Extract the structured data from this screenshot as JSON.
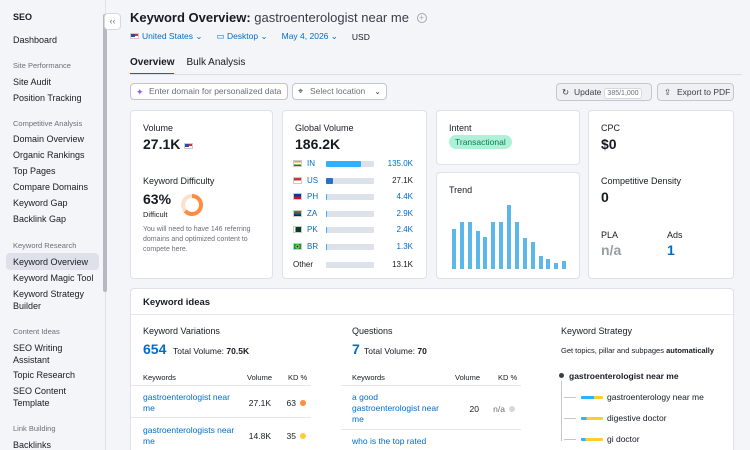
{
  "sidebar": {
    "title": "SEO",
    "collapse_glyph": "‹‹",
    "items": [
      {
        "label": "Dashboard"
      },
      {
        "label": "Site Performance",
        "type": "section"
      },
      {
        "label": "Site Audit"
      },
      {
        "label": "Position Tracking"
      },
      {
        "label": "Competitive Analysis",
        "type": "section"
      },
      {
        "label": "Domain Overview"
      },
      {
        "label": "Organic Rankings"
      },
      {
        "label": "Top Pages"
      },
      {
        "label": "Compare Domains"
      },
      {
        "label": "Keyword Gap"
      },
      {
        "label": "Backlink Gap"
      },
      {
        "label": "Keyword Research",
        "type": "section"
      },
      {
        "label": "Keyword Overview",
        "active": true
      },
      {
        "label": "Keyword Magic Tool"
      },
      {
        "label": "Keyword Strategy"
      },
      {
        "label": "Builder"
      },
      {
        "label": "Content Ideas",
        "type": "section"
      },
      {
        "label": "SEO Writing"
      },
      {
        "label": "Assistant"
      },
      {
        "label": "Topic Research"
      },
      {
        "label": "SEO Content"
      },
      {
        "label": "Template"
      },
      {
        "label": "Link Building",
        "type": "section"
      },
      {
        "label": "Backlinks"
      }
    ]
  },
  "header": {
    "title": "Keyword Overview:",
    "keyword": "gastroenterologist near me",
    "add_icon": "plus-circle-icon",
    "filters": {
      "country": "United States",
      "device": "Desktop",
      "date": "May 4, 2026",
      "currency": "USD"
    },
    "tabs": [
      {
        "label": "Overview",
        "active": true
      },
      {
        "label": "Bulk Analysis"
      }
    ]
  },
  "toolbar": {
    "domain_placeholder": "Enter domain for personalized data",
    "location_placeholder": "Select location",
    "update_label": "Update",
    "update_count": "385/1,000",
    "export_label": "Export to PDF"
  },
  "volume_card": {
    "volume_label": "Volume",
    "volume_value": "27.1K",
    "kd_label": "Keyword Difficulty",
    "kd_value": "63%",
    "kd_level": "Difficult",
    "kd_percent": 63,
    "kd_note": "You will need to have 146 referring domains and optimized content to compete here."
  },
  "global_volume": {
    "label": "Global Volume",
    "value": "186.2K",
    "rows": [
      {
        "code": "IN",
        "value": "135.0K",
        "share": 0.73,
        "link": true
      },
      {
        "code": "US",
        "value": "27.1K",
        "share": 0.15,
        "link": false
      },
      {
        "code": "PH",
        "value": "4.4K",
        "share": 0.03,
        "link": true
      },
      {
        "code": "ZA",
        "value": "2.9K",
        "share": 0.02,
        "link": true
      },
      {
        "code": "PK",
        "value": "2.4K",
        "share": 0.015,
        "link": true
      },
      {
        "code": "BR",
        "value": "1.3K",
        "share": 0.01,
        "link": true
      },
      {
        "code": "Other",
        "value": "13.1K",
        "share": 0.0,
        "link": false
      }
    ]
  },
  "intent_card": {
    "label": "Intent",
    "value": "Transactional",
    "trend_label": "Trend"
  },
  "trend_values": [
    0.62,
    0.73,
    0.73,
    0.6,
    0.5,
    0.73,
    0.73,
    1.0,
    0.73,
    0.48,
    0.42,
    0.2,
    0.15,
    0.1,
    0.12
  ],
  "cpc_card": {
    "cpc_label": "CPC",
    "cpc_value": "$0",
    "density_label": "Competitive Density",
    "density_value": "0",
    "pla_label": "PLA",
    "pla_value": "n/a",
    "ads_label": "Ads",
    "ads_value": "1"
  },
  "keyword_ideas": {
    "title": "Keyword ideas",
    "variations": {
      "title": "Keyword Variations",
      "count": "654",
      "total_label": "Total Volume:",
      "total_value": "70.5K",
      "col_keywords": "Keywords",
      "col_volume": "Volume",
      "col_kd": "KD %",
      "rows": [
        {
          "keyword": "gastroenterologist near me",
          "volume": "27.1K",
          "kd": "63"
        },
        {
          "keyword": "gastroenterologists near me",
          "volume": "14.8K",
          "kd": "35"
        }
      ]
    },
    "questions": {
      "title": "Questions",
      "count": "7",
      "total_label": "Total Volume:",
      "total_value": "70",
      "col_keywords": "Keywords",
      "col_volume": "Volume",
      "col_kd": "KD %",
      "rows": [
        {
          "keyword": "a good gastroenterologist near me",
          "volume": "20",
          "kd": "n/a"
        },
        {
          "keyword": "who is the top rated",
          "volume": "",
          "kd": ""
        }
      ]
    },
    "strategy": {
      "title": "Keyword Strategy",
      "subtitle_prefix": "Get topics, pillar and subpages ",
      "subtitle_bold": "automatically",
      "root": "gastroenterologist near me",
      "children": [
        "gastroenterology near me",
        "digestive doctor",
        "gi doctor"
      ]
    }
  },
  "colors": {
    "accent": "#006dca",
    "kd_orange": "#ff8c43",
    "kd_yellow": "#ffcc33",
    "trend": "#5cb8ec"
  }
}
